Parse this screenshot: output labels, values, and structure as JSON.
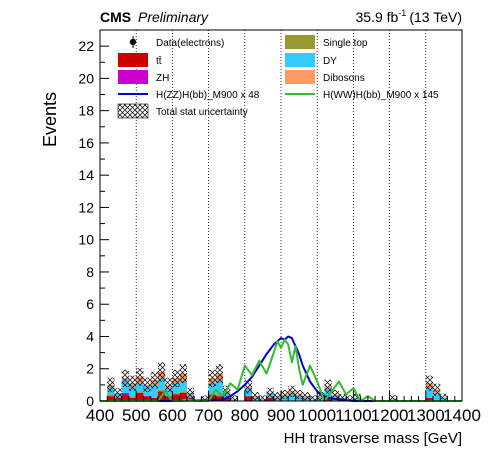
{
  "header": {
    "experiment": "CMS",
    "status": "Preliminary",
    "lumi": "35.9 fb",
    "lumi_exponent": "-1",
    "energy": "(13 TeV)"
  },
  "chart_data": {
    "type": "bar",
    "title": "",
    "xlabel": "HH transverse mass [GeV]",
    "ylabel": "Events",
    "xlim": [
      400,
      1400
    ],
    "ylim": [
      0,
      23
    ],
    "x_ticks": [
      400,
      500,
      600,
      700,
      800,
      900,
      1000,
      1100,
      1200,
      1300,
      1400
    ],
    "y_ticks": [
      0,
      2,
      4,
      6,
      8,
      10,
      12,
      14,
      16,
      18,
      20,
      22
    ],
    "grid": "vertical dotted lines at each 100 GeV",
    "legend_placement": "top",
    "bin_width": 20,
    "bins": [
      400,
      420,
      440,
      460,
      480,
      500,
      520,
      540,
      560,
      580,
      600,
      620,
      640,
      660,
      680,
      700,
      720,
      740,
      760,
      780,
      800,
      820,
      840,
      860,
      880,
      900,
      920,
      940,
      960,
      980,
      1000,
      1020,
      1040,
      1060,
      1080,
      1100,
      1120,
      1140,
      1160,
      1180,
      1200,
      1220,
      1240,
      1260,
      1280,
      1300,
      1320,
      1340,
      1360,
      1380
    ],
    "colors": {
      "ttbar": "#cc0000",
      "zh": "#cc00cc",
      "single_top": "#999933",
      "dy": "#33ccff",
      "dibosons": "#ff9966",
      "signal_zz": "#0000cc",
      "signal_ww": "#33bb33"
    },
    "legend": [
      {
        "key": "data",
        "label": "Data(electrons)",
        "marker": "point",
        "color": "#000000"
      },
      {
        "key": "single_top",
        "label": "Single top",
        "marker": "box",
        "color": "#999933"
      },
      {
        "key": "ttbar",
        "label": "tt̄",
        "marker": "box",
        "color": "#cc0000"
      },
      {
        "key": "dy",
        "label": "DY",
        "marker": "box",
        "color": "#33ccff"
      },
      {
        "key": "zh",
        "label": "ZH",
        "marker": "box",
        "color": "#cc00cc"
      },
      {
        "key": "dibosons",
        "label": "Dibosons",
        "marker": "box",
        "color": "#ff9966"
      },
      {
        "key": "signal_zz",
        "label": "H(ZZ)H(bb)_M900 x 48",
        "marker": "line",
        "color": "#0000cc"
      },
      {
        "key": "signal_ww",
        "label": "H(WW)H(bb)_M900 x 145",
        "marker": "line",
        "color": "#33bb33"
      },
      {
        "key": "unc",
        "label": "Total stat uncertainty",
        "marker": "hatch",
        "color": "#000000"
      }
    ],
    "series": [
      {
        "key": "ttbar",
        "values": [
          0,
          0.3,
          0.2,
          0.4,
          0.2,
          0.5,
          0.3,
          0.2,
          0.6,
          0.3,
          0.4,
          0.5,
          0.2,
          0,
          0,
          0.4,
          0.3,
          0.2,
          0,
          0,
          0.3,
          0,
          0,
          0.2,
          0,
          0,
          0,
          0,
          0,
          0,
          0,
          0.2,
          0,
          0,
          0,
          0,
          0,
          0,
          0,
          0,
          0,
          0,
          0,
          0,
          0,
          0.2,
          0,
          0,
          0,
          0
        ]
      },
      {
        "key": "single_top",
        "values": [
          0,
          0.1,
          0,
          0,
          0.1,
          0.1,
          0,
          0,
          0.1,
          0,
          0.1,
          0.1,
          0,
          0,
          0,
          0,
          0.1,
          0,
          0,
          0,
          0,
          0,
          0,
          0,
          0,
          0,
          0,
          0,
          0,
          0,
          0,
          0,
          0,
          0,
          0,
          0,
          0,
          0,
          0,
          0,
          0,
          0,
          0,
          0,
          0,
          0,
          0,
          0,
          0,
          0
        ]
      },
      {
        "key": "zh",
        "values": [
          0,
          0,
          0,
          0.1,
          0,
          0,
          0,
          0,
          0,
          0,
          0,
          0,
          0,
          0,
          0,
          0,
          0,
          0,
          0,
          0,
          0,
          0,
          0,
          0,
          0,
          0,
          0,
          0,
          0,
          0,
          0,
          0,
          0,
          0,
          0,
          0,
          0,
          0,
          0,
          0,
          0,
          0,
          0,
          0,
          0,
          0,
          0,
          0,
          0,
          0
        ]
      },
      {
        "key": "dy",
        "values": [
          0,
          0.5,
          0.3,
          0.8,
          0.6,
          0.5,
          0.6,
          0.8,
          0.7,
          0.5,
          0.6,
          0.6,
          0.2,
          0,
          0.1,
          0.7,
          0.9,
          0.3,
          0.1,
          0,
          0.5,
          0.2,
          0.1,
          0.3,
          0.2,
          0.3,
          0.5,
          0.3,
          0.2,
          0.1,
          0.2,
          0.6,
          0.3,
          0.2,
          0.1,
          0.2,
          0,
          0,
          0,
          0,
          0.1,
          0,
          0,
          0,
          0,
          0.6,
          0.5,
          0.2,
          0,
          0
        ]
      },
      {
        "key": "dibosons",
        "values": [
          0,
          0.1,
          0,
          0.1,
          0.2,
          0.4,
          0.1,
          0.3,
          0.4,
          0.2,
          0.3,
          0.5,
          0.1,
          0,
          0,
          0.3,
          0.4,
          0.1,
          0,
          0,
          0.1,
          0.1,
          0,
          0,
          0.1,
          0.1,
          0.1,
          0.1,
          0.1,
          0,
          0.1,
          0.1,
          0.1,
          0,
          0,
          0,
          0,
          0,
          0,
          0,
          0,
          0,
          0,
          0,
          0,
          0.3,
          0.2,
          0,
          0,
          0
        ]
      },
      {
        "key": "signal_zz",
        "type": "line",
        "x": [
          400,
          500,
          600,
          700,
          740,
          760,
          780,
          800,
          820,
          840,
          860,
          880,
          900,
          910,
          920,
          930,
          940,
          950,
          960,
          980,
          1000,
          1020,
          1040,
          1060,
          1080,
          1100,
          1200,
          1400
        ],
        "values": [
          0,
          0,
          0,
          0.05,
          0.1,
          0.3,
          0.6,
          1.0,
          1.5,
          2.2,
          2.9,
          3.5,
          3.9,
          3.8,
          4.0,
          3.9,
          3.4,
          2.9,
          2.2,
          1.2,
          0.6,
          0.3,
          0.15,
          0.1,
          0.05,
          0,
          0,
          0
        ]
      },
      {
        "key": "signal_ww",
        "type": "line",
        "x": [
          400,
          560,
          580,
          600,
          620,
          640,
          660,
          700,
          720,
          740,
          760,
          780,
          800,
          820,
          840,
          860,
          880,
          890,
          900,
          910,
          920,
          930,
          940,
          950,
          960,
          980,
          1000,
          1020,
          1040,
          1060,
          1080,
          1100,
          1120,
          1140,
          1160,
          1180,
          1200,
          1400
        ],
        "values": [
          0,
          0,
          0.6,
          0,
          0,
          0.1,
          0,
          0,
          0.7,
          0.3,
          1.1,
          0.7,
          2.2,
          1.6,
          2.5,
          1.7,
          3.0,
          3.7,
          3.3,
          3.8,
          3.5,
          2.4,
          3.4,
          2.0,
          1.0,
          2.2,
          1.2,
          0,
          0.6,
          1.2,
          0.4,
          0.8,
          0,
          0.3,
          0,
          0,
          0,
          0
        ]
      },
      {
        "key": "data",
        "type": "points",
        "x": [],
        "values": []
      }
    ]
  }
}
